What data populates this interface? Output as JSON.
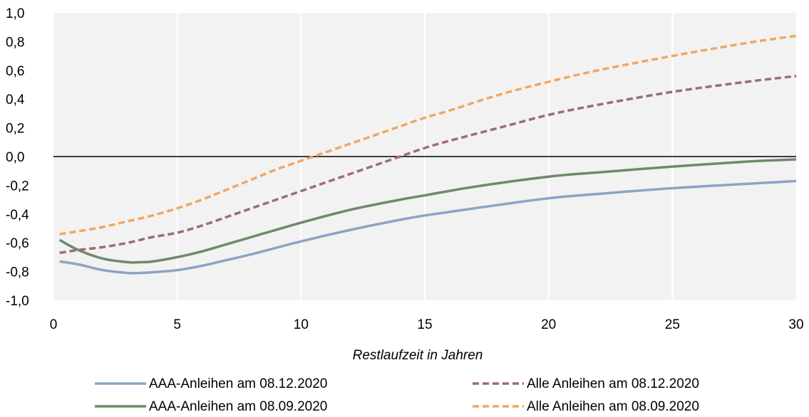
{
  "chart_data": {
    "type": "line",
    "title": "",
    "xlabel": "Restlaufzeit in Jahren",
    "ylabel": "",
    "xlim": [
      0,
      30
    ],
    "ylim": [
      -1.0,
      1.0
    ],
    "xticks": [
      "0",
      "5",
      "10",
      "15",
      "20",
      "25",
      "30"
    ],
    "yticks": [
      "1,0",
      "0,8",
      "0,6",
      "0,4",
      "0,2",
      "0,0",
      "-0,2",
      "-0,4",
      "-0,6",
      "-0,8",
      "-1,0"
    ],
    "grid": "vertical",
    "plot_background": "#f2f2f2",
    "legend_position": "bottom",
    "series": [
      {
        "name": "AAA-Anleihen am 08.12.2020",
        "color": "#8fa2c6",
        "dash": "solid",
        "x": [
          0.25,
          1,
          2,
          3,
          3.5,
          4,
          5,
          6,
          7,
          8,
          10,
          12,
          14,
          15,
          17,
          20,
          22,
          25,
          28,
          30
        ],
        "y": [
          -0.73,
          -0.75,
          -0.79,
          -0.81,
          -0.81,
          -0.805,
          -0.79,
          -0.76,
          -0.72,
          -0.68,
          -0.59,
          -0.51,
          -0.44,
          -0.41,
          -0.36,
          -0.29,
          -0.26,
          -0.22,
          -0.19,
          -0.17
        ]
      },
      {
        "name": "AAA-Anleihen am 08.09.2020",
        "color": "#6e8a6a",
        "dash": "solid",
        "x": [
          0.25,
          1,
          2,
          3,
          3.5,
          4,
          5,
          6,
          7,
          8,
          10,
          12,
          14,
          15,
          17,
          20,
          22,
          25,
          28,
          30
        ],
        "y": [
          -0.58,
          -0.65,
          -0.71,
          -0.735,
          -0.735,
          -0.73,
          -0.7,
          -0.66,
          -0.61,
          -0.56,
          -0.46,
          -0.37,
          -0.3,
          -0.27,
          -0.21,
          -0.14,
          -0.11,
          -0.07,
          -0.035,
          -0.02
        ]
      },
      {
        "name": "Alle Anleihen am 08.12.2020",
        "color": "#9c6b7a",
        "dash": "dashed",
        "x": [
          0.25,
          1,
          2,
          3,
          4,
          5,
          6,
          7,
          8,
          9,
          10,
          11,
          12,
          13,
          14,
          15,
          16,
          18,
          20,
          22,
          25,
          28,
          30
        ],
        "y": [
          -0.67,
          -0.65,
          -0.63,
          -0.6,
          -0.56,
          -0.53,
          -0.48,
          -0.42,
          -0.36,
          -0.3,
          -0.24,
          -0.18,
          -0.12,
          -0.06,
          0.0,
          0.06,
          0.11,
          0.2,
          0.29,
          0.36,
          0.45,
          0.52,
          0.56
        ]
      },
      {
        "name": "Alle Anleihen am 08.09.2020",
        "color": "#f0a860",
        "dash": "dashed",
        "x": [
          0.25,
          1,
          2,
          3,
          4,
          5,
          6,
          7,
          8,
          9,
          10,
          11,
          12,
          13,
          14,
          15,
          16,
          18,
          20,
          22,
          25,
          28,
          30
        ],
        "y": [
          -0.54,
          -0.52,
          -0.49,
          -0.45,
          -0.41,
          -0.36,
          -0.3,
          -0.23,
          -0.16,
          -0.09,
          -0.03,
          0.03,
          0.09,
          0.15,
          0.21,
          0.27,
          0.32,
          0.43,
          0.52,
          0.6,
          0.7,
          0.79,
          0.84
        ]
      }
    ]
  }
}
